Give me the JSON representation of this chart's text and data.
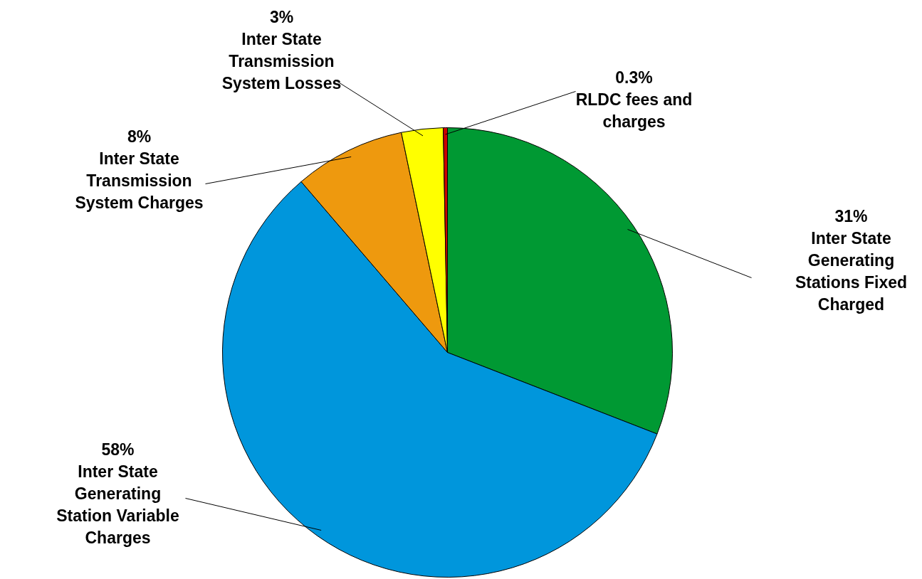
{
  "chart_data": {
    "type": "pie",
    "categories": [
      "Inter State Generating Stations Fixed Charged",
      "Inter State Generating Station Variable Charges",
      "Inter State Transmission System Charges",
      "Inter State Transmission System Losses",
      "RLDC fees and charges"
    ],
    "values": [
      31,
      58,
      8,
      3,
      0.3
    ],
    "value_labels": [
      "31%",
      "58%",
      "8%",
      "3%",
      "0.3%"
    ],
    "colors": [
      "#009933",
      "#0096dc",
      "#ee990e",
      "#ffff00",
      "#cc0000"
    ]
  }
}
